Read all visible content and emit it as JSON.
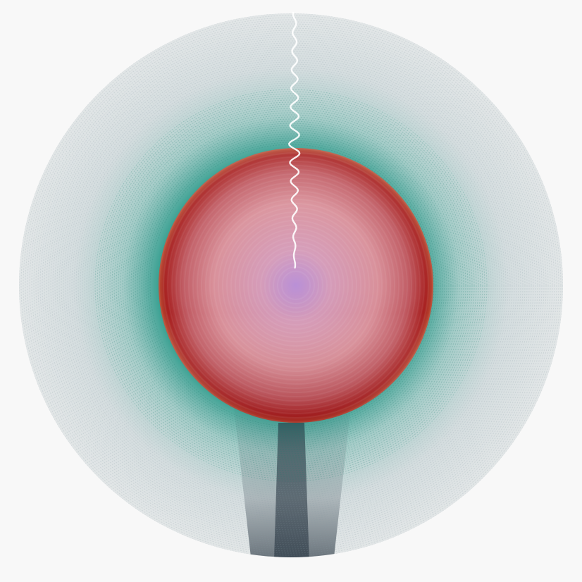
{
  "artwork": {
    "background_color": "#f8f8f8",
    "outer_ring_color": "#b8c6c8",
    "teal_band_color": "#2a9a8a",
    "dark_bottom_color": "#1e2c38",
    "red_rim_color": "#a01818",
    "inner_sphere_color": "#d89aa2",
    "center_glow_color": "#b88ed6",
    "seam_color": "#ffffff"
  }
}
